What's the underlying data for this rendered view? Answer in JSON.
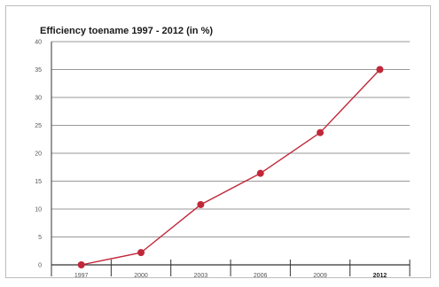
{
  "chart_data": {
    "type": "line",
    "title": "Efficiency toename 1997 - 2012 (in %)",
    "xlabel": "",
    "ylabel": "",
    "categories": [
      "1997",
      "2000",
      "2003",
      "2006",
      "2009",
      "2012"
    ],
    "bold_categories": [
      "2012"
    ],
    "series": [
      {
        "values": [
          0,
          2.2,
          10.8,
          16.4,
          23.7,
          35.0
        ]
      }
    ],
    "ylim": [
      0,
      40
    ],
    "yticks": [
      "0",
      "5",
      "10",
      "15",
      "20",
      "25",
      "30",
      "35",
      "40"
    ],
    "grid": true,
    "colors": {
      "line": "#c0283a",
      "marker": "#c0283a",
      "grid": "#777777",
      "axis": "#333333"
    }
  }
}
